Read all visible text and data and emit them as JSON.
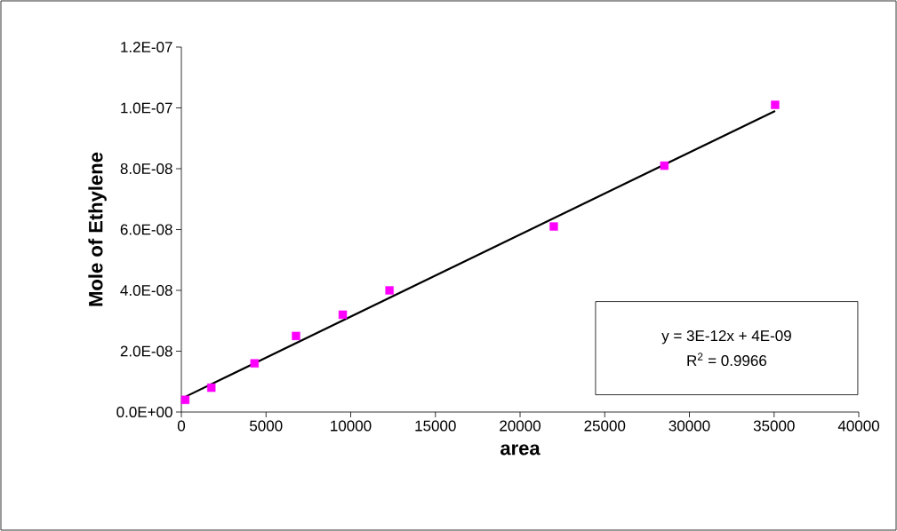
{
  "chart_data": {
    "type": "scatter",
    "xlabel": "area",
    "ylabel": "Mole of Ethylene",
    "series": [
      {
        "color": "#ff00ff",
        "x": [
          230,
          1770,
          4320,
          6770,
          9530,
          12290,
          21990,
          28520,
          35060
        ],
        "values": [
          4e-09,
          8e-09,
          1.6e-08,
          2.5e-08,
          3.2e-08,
          4e-08,
          6.1e-08,
          8.1e-08,
          1.01e-07
        ]
      },
      {
        "type": "line",
        "color": "#000000",
        "marker": "none",
        "x": [
          230,
          35060
        ],
        "values": [
          5e-09,
          9.9e-08
        ]
      }
    ],
    "marker": "square",
    "line_style": "solid",
    "grid": false,
    "xlim": [
      0,
      40000
    ],
    "xticks": [
      0,
      5000,
      10000,
      15000,
      20000,
      25000,
      30000,
      35000,
      40000
    ],
    "ylim": [
      0,
      1.2e-07
    ],
    "yticks": [
      {
        "value": 0,
        "label": "0.0E+00"
      },
      {
        "value": 2e-08,
        "label": "2.0E-08"
      },
      {
        "value": 4e-08,
        "label": "4.0E-08"
      },
      {
        "value": 6e-08,
        "label": "6.0E-08"
      },
      {
        "value": 8e-08,
        "label": "8.0E-08"
      },
      {
        "value": 1e-07,
        "label": "1.0E-07"
      },
      {
        "value": 1.2e-07,
        "label": "1.2E-07"
      }
    ],
    "annotations": [
      "y = 3E-12x + 4E-09",
      "R$^{2}$ = 0.9966"
    ]
  }
}
